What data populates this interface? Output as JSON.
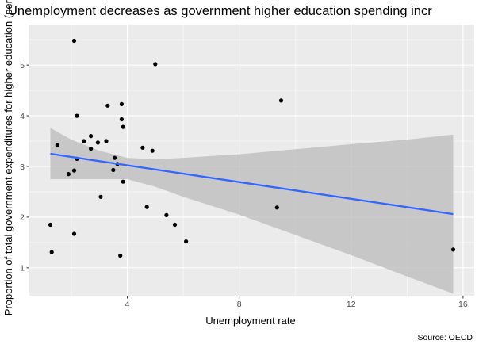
{
  "chart_data": {
    "type": "scatter",
    "title": "Unemployment decreases as government higher education spending incr",
    "xlabel": "Unemployment rate",
    "ylabel": "Proportion of total government expenditures for higher education (per",
    "caption": "Source: OECD",
    "xlim": [
      0.5,
      16.4
    ],
    "ylim": [
      0.45,
      5.8
    ],
    "x_ticks": [
      4,
      8,
      12,
      16
    ],
    "x_tick_labels": [
      "4",
      "8",
      "12",
      "16"
    ],
    "y_ticks": [
      1,
      2,
      3,
      4,
      5
    ],
    "y_tick_labels": [
      "1",
      "2",
      "3",
      "4",
      "5"
    ],
    "grid": true,
    "points": [
      {
        "x": 2.1,
        "y": 5.48
      },
      {
        "x": 5.0,
        "y": 5.02
      },
      {
        "x": 2.2,
        "y": 4.0
      },
      {
        "x": 3.3,
        "y": 4.2
      },
      {
        "x": 3.8,
        "y": 4.23
      },
      {
        "x": 9.5,
        "y": 4.3
      },
      {
        "x": 3.8,
        "y": 3.93
      },
      {
        "x": 3.85,
        "y": 3.78
      },
      {
        "x": 2.7,
        "y": 3.6
      },
      {
        "x": 1.5,
        "y": 3.42
      },
      {
        "x": 2.45,
        "y": 3.5
      },
      {
        "x": 2.95,
        "y": 3.47
      },
      {
        "x": 3.25,
        "y": 3.5
      },
      {
        "x": 2.7,
        "y": 3.35
      },
      {
        "x": 4.55,
        "y": 3.37
      },
      {
        "x": 4.9,
        "y": 3.31
      },
      {
        "x": 2.2,
        "y": 3.15
      },
      {
        "x": 3.55,
        "y": 3.17
      },
      {
        "x": 3.65,
        "y": 3.05
      },
      {
        "x": 3.5,
        "y": 2.93
      },
      {
        "x": 2.1,
        "y": 2.92
      },
      {
        "x": 1.9,
        "y": 2.85
      },
      {
        "x": 3.85,
        "y": 2.7
      },
      {
        "x": 3.05,
        "y": 2.4
      },
      {
        "x": 4.7,
        "y": 2.2
      },
      {
        "x": 9.35,
        "y": 2.19
      },
      {
        "x": 5.4,
        "y": 2.04
      },
      {
        "x": 5.7,
        "y": 1.85
      },
      {
        "x": 1.25,
        "y": 1.85
      },
      {
        "x": 2.1,
        "y": 1.67
      },
      {
        "x": 6.1,
        "y": 1.52
      },
      {
        "x": 1.3,
        "y": 1.31
      },
      {
        "x": 3.75,
        "y": 1.24
      },
      {
        "x": 15.65,
        "y": 1.36
      }
    ],
    "trend_line": {
      "x": [
        1.25,
        15.65
      ],
      "y": [
        3.25,
        2.06
      ]
    },
    "confidence_band": {
      "x": [
        1.25,
        2.0,
        3.0,
        4.0,
        5.0,
        6.0,
        8.0,
        10.0,
        12.0,
        14.0,
        15.65
      ],
      "upper": [
        3.76,
        3.53,
        3.31,
        3.17,
        3.14,
        3.17,
        3.24,
        3.34,
        3.44,
        3.53,
        3.63
      ],
      "lower": [
        2.75,
        2.75,
        2.75,
        2.75,
        2.6,
        2.4,
        2.05,
        1.65,
        1.25,
        0.83,
        0.49
      ]
    },
    "colors": {
      "panel": "#ebebeb",
      "grid": "#ffffff",
      "points": "#000000",
      "trend_line": "#3366ff",
      "confidence_band": "#bebebe"
    }
  }
}
